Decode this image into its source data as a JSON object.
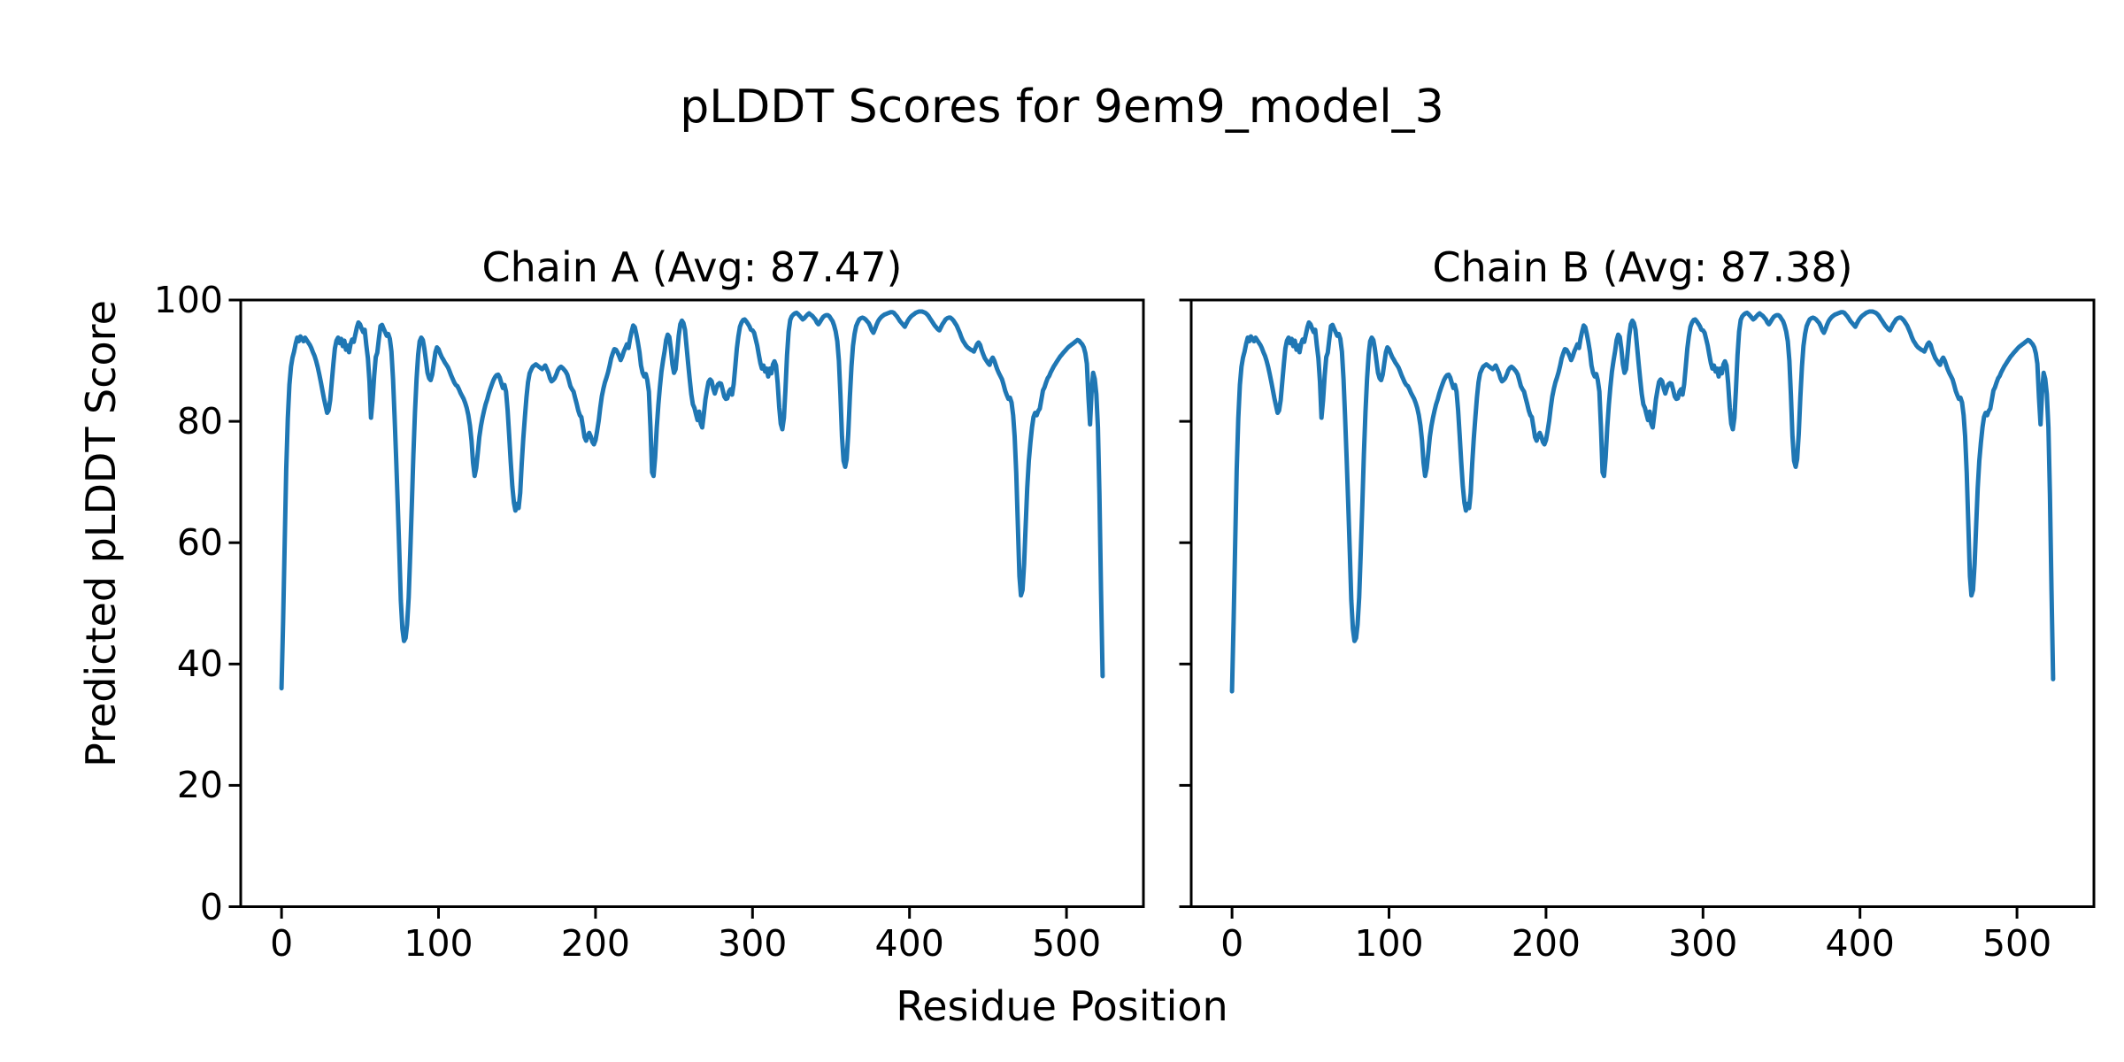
{
  "figure": {
    "title": "pLDDT Scores for 9em9_model_3",
    "background_color": "#ffffff",
    "text_color": "#000000"
  },
  "chart_data": {
    "type": "line",
    "title": "pLDDT Scores for 9em9_model_3",
    "xlabel": "Residue Position",
    "ylabel": "Predicted pLDDT Score",
    "grid": false,
    "legend": "none",
    "line_color": "#1f77b4",
    "xlim": [
      -26,
      549
    ],
    "ylim": [
      0,
      100
    ],
    "xticks": [
      0,
      100,
      200,
      300,
      400,
      500
    ],
    "yticks": [
      0,
      20,
      40,
      60,
      80,
      100
    ],
    "subplots": [
      {
        "name": "Chain A",
        "title": "Chain A (Avg: 87.47)",
        "avg": 87.47,
        "x_start": 0,
        "x_step": 1,
        "values": [
          36.0,
          47.0,
          60.0,
          72.0,
          80.5,
          86.0,
          89.0,
          90.5,
          91.5,
          92.8,
          93.8,
          93.2,
          94.0,
          93.6,
          93.2,
          93.8,
          93.4,
          93.0,
          92.6,
          92.1,
          91.4,
          90.8,
          90.0,
          89.0,
          87.8,
          86.5,
          85.2,
          83.8,
          82.6,
          81.4,
          81.8,
          83.5,
          86.5,
          89.5,
          92.0,
          93.3,
          93.8,
          92.9,
          93.6,
          92.4,
          93.3,
          91.8,
          92.5,
          91.4,
          92.8,
          93.5,
          93.1,
          94.3,
          95.5,
          96.3,
          96.0,
          95.3,
          94.7,
          95.1,
          92.6,
          90.4,
          86.5,
          80.6,
          83.5,
          87.5,
          90.6,
          91.3,
          93.6,
          95.7,
          95.9,
          95.3,
          94.7,
          94.1,
          94.4,
          93.6,
          91.5,
          87.0,
          81.0,
          74.0,
          66.5,
          58.5,
          50.5,
          45.8,
          43.8,
          44.3,
          46.5,
          51.0,
          58.5,
          66.5,
          74.5,
          81.5,
          87.0,
          91.0,
          93.2,
          93.8,
          93.4,
          92.0,
          90.0,
          88.0,
          87.1,
          86.8,
          87.7,
          89.6,
          91.4,
          92.2,
          91.9,
          91.2,
          90.6,
          90.2,
          89.7,
          89.3,
          88.9,
          88.3,
          87.6,
          87.0,
          86.4,
          86.0,
          85.8,
          85.3,
          84.7,
          84.2,
          83.7,
          83.0,
          82.2,
          81.0,
          79.3,
          76.8,
          73.2,
          71.0,
          72.3,
          74.8,
          77.4,
          79.2,
          80.6,
          81.8,
          82.8,
          83.6,
          84.6,
          85.4,
          86.1,
          86.8,
          87.3,
          87.6,
          87.7,
          87.2,
          86.3,
          85.5,
          86.0,
          84.9,
          81.8,
          77.8,
          73.3,
          69.3,
          66.6,
          65.3,
          66.4,
          65.7,
          68.2,
          73.0,
          77.2,
          80.7,
          84.0,
          86.4,
          87.9,
          88.5,
          89.0,
          89.2,
          89.4,
          89.2,
          89.0,
          88.8,
          88.6,
          88.9,
          89.2,
          88.6,
          88.0,
          87.1,
          86.6,
          86.8,
          87.1,
          87.7,
          88.4,
          88.8,
          89.0,
          88.8,
          88.5,
          88.2,
          87.7,
          86.8,
          85.8,
          85.3,
          84.9,
          83.9,
          82.9,
          81.8,
          81.0,
          80.7,
          79.1,
          77.4,
          76.8,
          77.6,
          78.1,
          77.5,
          76.6,
          76.2,
          76.9,
          78.4,
          80.1,
          82.2,
          84.1,
          85.4,
          86.4,
          87.2,
          88.1,
          89.2,
          90.4,
          91.2,
          91.9,
          91.8,
          91.4,
          90.8,
          90.1,
          90.7,
          91.5,
          92.1,
          92.7,
          92.1,
          93.6,
          94.8,
          95.8,
          95.5,
          94.4,
          93.0,
          91.4,
          89.2,
          88.0,
          87.4,
          87.8,
          86.8,
          84.9,
          79.0,
          71.6,
          71.0,
          74.1,
          79.0,
          82.7,
          85.6,
          88.2,
          90.0,
          91.6,
          93.4,
          94.3,
          93.9,
          91.9,
          89.4,
          88.0,
          88.6,
          91.2,
          94.1,
          96.0,
          96.6,
          96.2,
          95.1,
          92.3,
          89.5,
          87.0,
          84.5,
          82.8,
          82.2,
          81.2,
          80.2,
          81.6,
          79.6,
          79.0,
          81.2,
          83.6,
          85.2,
          86.5,
          86.9,
          86.6,
          85.4,
          84.6,
          85.5,
          86.1,
          86.3,
          86.2,
          85.2,
          84.1,
          83.7,
          83.8,
          84.9,
          85.3,
          84.4,
          86.1,
          89.0,
          92.0,
          94.0,
          95.6,
          96.3,
          96.7,
          96.8,
          96.5,
          96.1,
          95.7,
          95.1,
          95.0,
          94.6,
          93.6,
          92.5,
          91.0,
          89.6,
          88.7,
          89.2,
          88.2,
          88.7,
          87.4,
          88.7,
          87.9,
          89.4,
          89.9,
          89.2,
          86.3,
          82.3,
          79.6,
          78.7,
          80.6,
          85.2,
          90.9,
          94.8,
          96.7,
          97.3,
          97.6,
          97.8,
          97.9,
          97.7,
          97.4,
          97.1,
          96.8,
          97.0,
          97.3,
          97.6,
          97.8,
          97.6,
          97.4,
          97.1,
          96.8,
          96.3,
          96.0,
          96.4,
          96.8,
          97.2,
          97.4,
          97.5,
          97.5,
          97.3,
          96.9,
          96.5,
          95.8,
          94.8,
          93.2,
          90.0,
          84.5,
          77.5,
          73.5,
          72.5,
          73.8,
          78.0,
          84.0,
          89.0,
          92.4,
          94.4,
          95.7,
          96.3,
          96.8,
          97.0,
          97.1,
          97.0,
          96.8,
          96.5,
          96.2,
          95.7,
          95.0,
          94.6,
          95.2,
          95.9,
          96.5,
          96.9,
          97.2,
          97.4,
          97.6,
          97.7,
          97.8,
          97.9,
          98.0,
          98.0,
          97.9,
          97.6,
          97.3,
          96.9,
          96.5,
          96.2,
          95.9,
          95.6,
          96.1,
          96.6,
          97.0,
          97.3,
          97.5,
          97.7,
          97.9,
          98.0,
          98.1,
          98.1,
          98.1,
          98.0,
          97.9,
          97.7,
          97.4,
          97.0,
          96.6,
          96.2,
          95.8,
          95.5,
          95.2,
          95.0,
          95.5,
          96.0,
          96.4,
          96.8,
          97.0,
          97.1,
          97.1,
          96.9,
          96.6,
          96.2,
          95.8,
          95.2,
          94.6,
          93.9,
          93.3,
          92.9,
          92.5,
          92.2,
          92.0,
          91.8,
          91.7,
          91.5,
          92.1,
          92.7,
          93.0,
          92.6,
          91.7,
          91.0,
          90.4,
          90.0,
          89.6,
          89.3,
          90.1,
          90.5,
          90.0,
          89.2,
          88.5,
          87.9,
          87.4,
          86.9,
          86.0,
          85.0,
          84.3,
          83.7,
          83.9,
          83.1,
          81.0,
          77.5,
          71.5,
          63.0,
          54.5,
          51.3,
          52.2,
          56.5,
          63.0,
          69.0,
          73.5,
          76.5,
          79.0,
          80.7,
          81.4,
          81.0,
          81.7,
          82.1,
          83.6,
          85.1,
          85.6,
          86.4,
          87.1,
          87.5,
          88.1,
          88.6,
          89.1,
          89.5,
          89.9,
          90.3,
          90.7,
          91.0,
          91.3,
          91.6,
          91.9,
          92.2,
          92.4,
          92.6,
          92.8,
          93.0,
          93.2,
          93.4,
          93.3,
          93.0,
          92.7,
          92.2,
          91.2,
          89.5,
          84.0,
          79.5,
          85.0,
          88.0,
          87.0,
          84.5,
          79.0,
          68.0,
          52.0,
          38.0
        ]
      },
      {
        "name": "Chain B",
        "title": "Chain B (Avg: 87.38)",
        "avg": 87.38,
        "x_start": 0,
        "x_step": 1,
        "values": [
          35.5,
          47.0,
          60.0,
          72.0,
          80.5,
          86.0,
          89.0,
          90.5,
          91.5,
          92.8,
          93.8,
          93.2,
          94.0,
          93.6,
          93.2,
          93.8,
          93.4,
          93.0,
          92.6,
          92.1,
          91.4,
          90.8,
          90.0,
          89.0,
          87.8,
          86.5,
          85.2,
          83.8,
          82.6,
          81.4,
          81.8,
          83.5,
          86.5,
          89.5,
          92.0,
          93.3,
          93.8,
          92.9,
          93.6,
          92.4,
          93.3,
          91.8,
          92.5,
          91.4,
          92.8,
          93.5,
          93.1,
          94.3,
          95.5,
          96.3,
          96.0,
          95.3,
          94.7,
          95.1,
          92.6,
          90.4,
          86.5,
          80.6,
          83.5,
          87.5,
          90.6,
          91.3,
          93.6,
          95.7,
          95.9,
          95.3,
          94.7,
          94.1,
          94.4,
          93.6,
          91.5,
          87.0,
          81.0,
          74.0,
          66.5,
          58.5,
          50.5,
          45.8,
          43.8,
          44.3,
          46.5,
          51.0,
          58.5,
          66.5,
          74.5,
          81.5,
          87.0,
          91.0,
          93.2,
          93.8,
          93.4,
          92.0,
          90.0,
          88.0,
          87.1,
          86.8,
          87.7,
          89.6,
          91.4,
          92.2,
          91.9,
          91.2,
          90.6,
          90.2,
          89.7,
          89.3,
          88.9,
          88.3,
          87.6,
          87.0,
          86.4,
          86.0,
          85.8,
          85.3,
          84.7,
          84.2,
          83.7,
          83.0,
          82.2,
          81.0,
          79.3,
          76.8,
          73.2,
          71.0,
          72.3,
          74.8,
          77.4,
          79.2,
          80.6,
          81.8,
          82.8,
          83.6,
          84.6,
          85.4,
          86.1,
          86.8,
          87.3,
          87.6,
          87.7,
          87.2,
          86.3,
          85.5,
          86.0,
          84.9,
          81.8,
          77.8,
          73.3,
          69.3,
          66.6,
          65.3,
          66.4,
          65.7,
          68.2,
          73.0,
          77.2,
          80.7,
          84.0,
          86.4,
          87.9,
          88.5,
          89.0,
          89.2,
          89.4,
          89.2,
          89.0,
          88.8,
          88.6,
          88.9,
          89.2,
          88.6,
          88.0,
          87.1,
          86.6,
          86.8,
          87.1,
          87.7,
          88.4,
          88.8,
          89.0,
          88.8,
          88.5,
          88.2,
          87.7,
          86.8,
          85.8,
          85.3,
          84.9,
          83.9,
          82.9,
          81.8,
          81.0,
          80.7,
          79.1,
          77.4,
          76.8,
          77.6,
          78.1,
          77.5,
          76.6,
          76.2,
          76.9,
          78.4,
          80.1,
          82.2,
          84.1,
          85.4,
          86.4,
          87.2,
          88.1,
          89.2,
          90.4,
          91.2,
          91.9,
          91.8,
          91.4,
          90.8,
          90.1,
          90.7,
          91.5,
          92.1,
          92.7,
          92.1,
          93.6,
          94.8,
          95.8,
          95.5,
          94.4,
          93.0,
          91.4,
          89.2,
          88.0,
          87.4,
          87.8,
          86.8,
          84.9,
          79.0,
          71.6,
          71.0,
          74.1,
          79.0,
          82.7,
          85.6,
          88.2,
          90.0,
          91.6,
          93.4,
          94.3,
          93.9,
          91.9,
          89.4,
          88.0,
          88.6,
          91.2,
          94.1,
          96.0,
          96.6,
          96.2,
          95.1,
          92.3,
          89.5,
          87.0,
          84.5,
          82.8,
          82.2,
          81.2,
          80.2,
          81.6,
          79.6,
          79.0,
          81.2,
          83.6,
          85.2,
          86.5,
          86.9,
          86.6,
          85.4,
          84.6,
          85.5,
          86.1,
          86.3,
          86.2,
          85.2,
          84.1,
          83.7,
          83.8,
          84.9,
          85.3,
          84.4,
          86.1,
          89.0,
          92.0,
          94.0,
          95.6,
          96.3,
          96.7,
          96.8,
          96.5,
          96.1,
          95.7,
          95.1,
          95.0,
          94.6,
          93.6,
          92.5,
          91.0,
          89.6,
          88.7,
          89.2,
          88.2,
          88.7,
          87.4,
          88.7,
          87.9,
          89.4,
          89.9,
          89.2,
          86.3,
          82.3,
          79.6,
          78.7,
          80.6,
          85.2,
          90.9,
          94.8,
          96.7,
          97.3,
          97.6,
          97.8,
          97.9,
          97.7,
          97.4,
          97.1,
          96.8,
          97.0,
          97.3,
          97.6,
          97.8,
          97.6,
          97.4,
          97.1,
          96.8,
          96.3,
          96.0,
          96.4,
          96.8,
          97.2,
          97.4,
          97.5,
          97.5,
          97.3,
          96.9,
          96.5,
          95.8,
          94.8,
          93.2,
          90.0,
          84.5,
          77.5,
          73.5,
          72.5,
          73.8,
          78.0,
          84.0,
          89.0,
          92.4,
          94.4,
          95.7,
          96.3,
          96.8,
          97.0,
          97.1,
          97.0,
          96.8,
          96.5,
          96.2,
          95.7,
          95.0,
          94.6,
          95.2,
          95.9,
          96.5,
          96.9,
          97.2,
          97.4,
          97.6,
          97.7,
          97.8,
          97.9,
          98.0,
          98.0,
          97.9,
          97.6,
          97.3,
          96.9,
          96.5,
          96.2,
          95.9,
          95.6,
          96.1,
          96.6,
          97.0,
          97.3,
          97.5,
          97.7,
          97.9,
          98.0,
          98.1,
          98.1,
          98.1,
          98.0,
          97.9,
          97.7,
          97.4,
          97.0,
          96.6,
          96.2,
          95.8,
          95.5,
          95.2,
          95.0,
          95.5,
          96.0,
          96.4,
          96.8,
          97.0,
          97.1,
          97.1,
          96.9,
          96.6,
          96.2,
          95.8,
          95.2,
          94.6,
          93.9,
          93.3,
          92.9,
          92.5,
          92.2,
          92.0,
          91.8,
          91.7,
          91.5,
          92.1,
          92.7,
          93.0,
          92.6,
          91.7,
          91.0,
          90.4,
          90.0,
          89.6,
          89.3,
          90.1,
          90.5,
          90.0,
          89.2,
          88.5,
          87.9,
          87.4,
          86.9,
          86.0,
          85.0,
          84.3,
          83.7,
          83.9,
          83.1,
          81.0,
          77.5,
          71.5,
          63.0,
          54.5,
          51.3,
          52.2,
          56.5,
          63.0,
          69.0,
          73.5,
          76.5,
          79.0,
          80.7,
          81.4,
          81.0,
          81.7,
          82.1,
          83.6,
          85.1,
          85.6,
          86.4,
          87.1,
          87.5,
          88.1,
          88.6,
          89.1,
          89.5,
          89.9,
          90.3,
          90.7,
          91.0,
          91.3,
          91.6,
          91.9,
          92.2,
          92.4,
          92.6,
          92.8,
          93.0,
          93.2,
          93.4,
          93.3,
          93.0,
          92.7,
          92.2,
          91.2,
          89.5,
          84.0,
          79.5,
          85.0,
          88.0,
          87.0,
          84.5,
          79.0,
          68.0,
          52.0,
          37.5
        ]
      }
    ]
  }
}
